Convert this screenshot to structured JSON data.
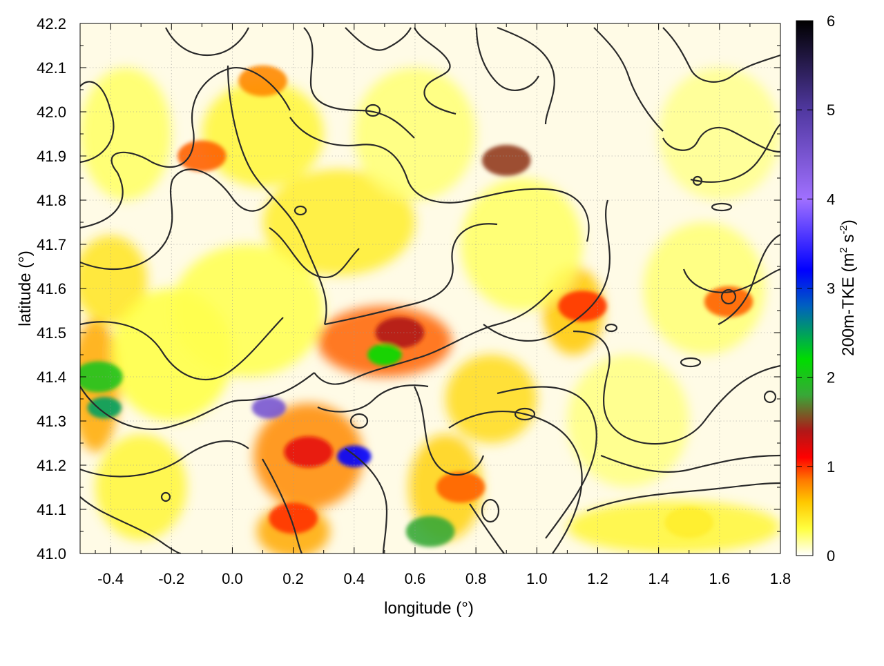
{
  "chart_data": {
    "type": "heatmap",
    "xlabel": "longitude (°)",
    "ylabel": "latitude (°)",
    "xlim": [
      -0.5,
      1.8
    ],
    "ylim": [
      41.0,
      42.2
    ],
    "x_ticks": [
      -0.4,
      -0.2,
      0.0,
      0.2,
      0.4,
      0.6,
      0.8,
      1.0,
      1.2,
      1.4,
      1.6,
      1.8
    ],
    "x_tick_labels": [
      "-0.4",
      "-0.2",
      "0.0",
      "0.2",
      "0.4",
      "0.6",
      "0.8",
      "1.0",
      "1.2",
      "1.4",
      "1.6",
      "1.8"
    ],
    "y_ticks": [
      41.0,
      41.1,
      41.2,
      41.3,
      41.4,
      41.5,
      41.6,
      41.7,
      41.8,
      41.9,
      42.0,
      42.1,
      42.2
    ],
    "y_tick_labels": [
      "41.0",
      "41.1",
      "41.2",
      "41.3",
      "41.4",
      "41.5",
      "41.6",
      "41.7",
      "41.8",
      "41.9",
      "42.0",
      "42.1",
      "42.2"
    ],
    "grid": true,
    "colorbar": {
      "label_main": "200m-TKE (m",
      "label_sup1": "2",
      "label_mid": " s",
      "label_sup2": "-2",
      "label_end": ")",
      "range": [
        0,
        6
      ],
      "ticks": [
        0,
        1,
        2,
        3,
        4,
        5,
        6
      ],
      "tick_labels": [
        "0",
        "1",
        "2",
        "3",
        "4",
        "5",
        "6"
      ],
      "stops": [
        {
          "value": 0.0,
          "color": "#ffffff"
        },
        {
          "value": 0.3,
          "color": "#ffff40"
        },
        {
          "value": 0.6,
          "color": "#ffc800"
        },
        {
          "value": 0.85,
          "color": "#ff7800"
        },
        {
          "value": 1.1,
          "color": "#ff0000"
        },
        {
          "value": 1.4,
          "color": "#b01818"
        },
        {
          "value": 1.8,
          "color": "#38a838"
        },
        {
          "value": 2.2,
          "color": "#00dd00"
        },
        {
          "value": 2.8,
          "color": "#0060c0"
        },
        {
          "value": 3.2,
          "color": "#0000ff"
        },
        {
          "value": 4.0,
          "color": "#a070ff"
        },
        {
          "value": 5.0,
          "color": "#5038a0"
        },
        {
          "value": 6.0,
          "color": "#000000"
        }
      ]
    },
    "tke_features": [
      {
        "lon": 0.55,
        "lat": 41.5,
        "value": 1.4
      },
      {
        "lon": 0.5,
        "lat": 41.45,
        "value": 2.2
      },
      {
        "lon": 0.25,
        "lat": 41.23,
        "value": 1.2
      },
      {
        "lon": 0.12,
        "lat": 41.33,
        "value": 4.5
      },
      {
        "lon": 0.4,
        "lat": 41.22,
        "value": 3.2
      },
      {
        "lon": 0.2,
        "lat": 41.08,
        "value": 1.0
      },
      {
        "lon": -0.44,
        "lat": 41.4,
        "value": 2.0
      },
      {
        "lon": -0.42,
        "lat": 41.33,
        "value": 2.5
      },
      {
        "lon": 1.15,
        "lat": 41.56,
        "value": 1.0
      },
      {
        "lon": 0.9,
        "lat": 41.89,
        "value": 1.5
      },
      {
        "lon": 1.5,
        "lat": 41.07,
        "value": 0.4
      },
      {
        "lon": -0.1,
        "lat": 41.9,
        "value": 0.9
      },
      {
        "lon": 0.75,
        "lat": 41.15,
        "value": 0.9
      },
      {
        "lon": 0.1,
        "lat": 42.07,
        "value": 0.8
      },
      {
        "lon": 1.63,
        "lat": 41.57,
        "value": 0.9
      },
      {
        "lon": 0.65,
        "lat": 41.05,
        "value": 1.8
      }
    ]
  }
}
